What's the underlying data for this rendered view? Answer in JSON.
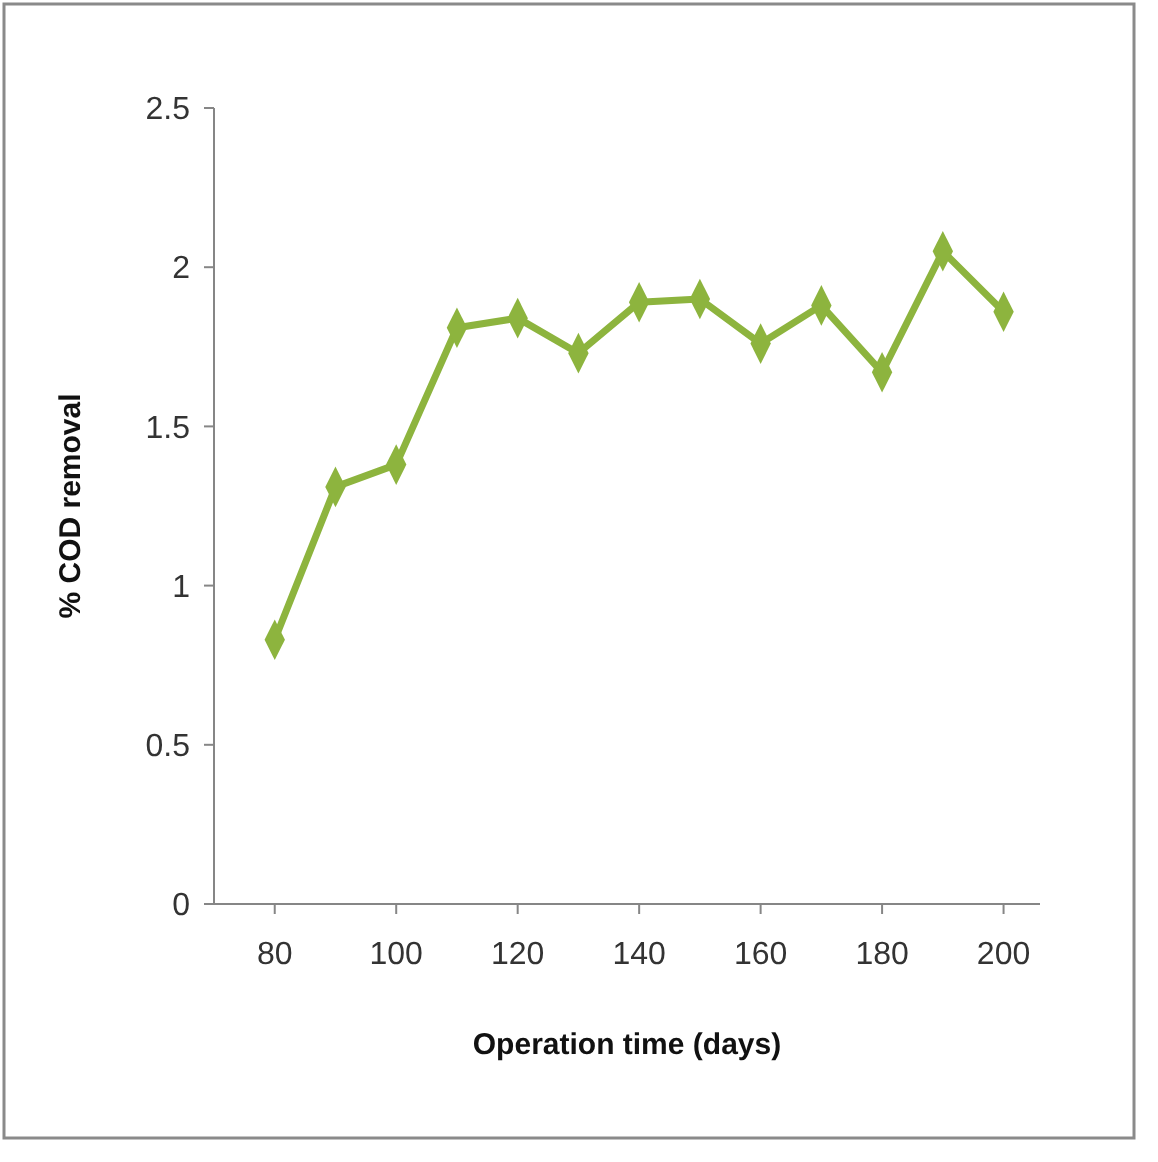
{
  "chart_data": {
    "type": "line",
    "xlabel": "Operation time (days)",
    "ylabel": "% COD removal",
    "x": [
      80,
      90,
      100,
      110,
      120,
      130,
      140,
      150,
      160,
      170,
      180,
      190,
      200
    ],
    "series": [
      {
        "color": "#8db43e",
        "values": [
          0.83,
          1.31,
          1.38,
          1.81,
          1.84,
          1.73,
          1.89,
          1.9,
          1.76,
          1.88,
          1.67,
          2.05,
          1.86
        ]
      }
    ],
    "xlim": [
      70,
      206
    ],
    "xticks": [
      80,
      100,
      120,
      140,
      160,
      180,
      200
    ],
    "ylim": [
      0,
      2.5
    ],
    "yticks": [
      0,
      0.5,
      1,
      1.5,
      2,
      2.5
    ],
    "grid": false,
    "marker": "diamond",
    "line_style": "solid"
  }
}
